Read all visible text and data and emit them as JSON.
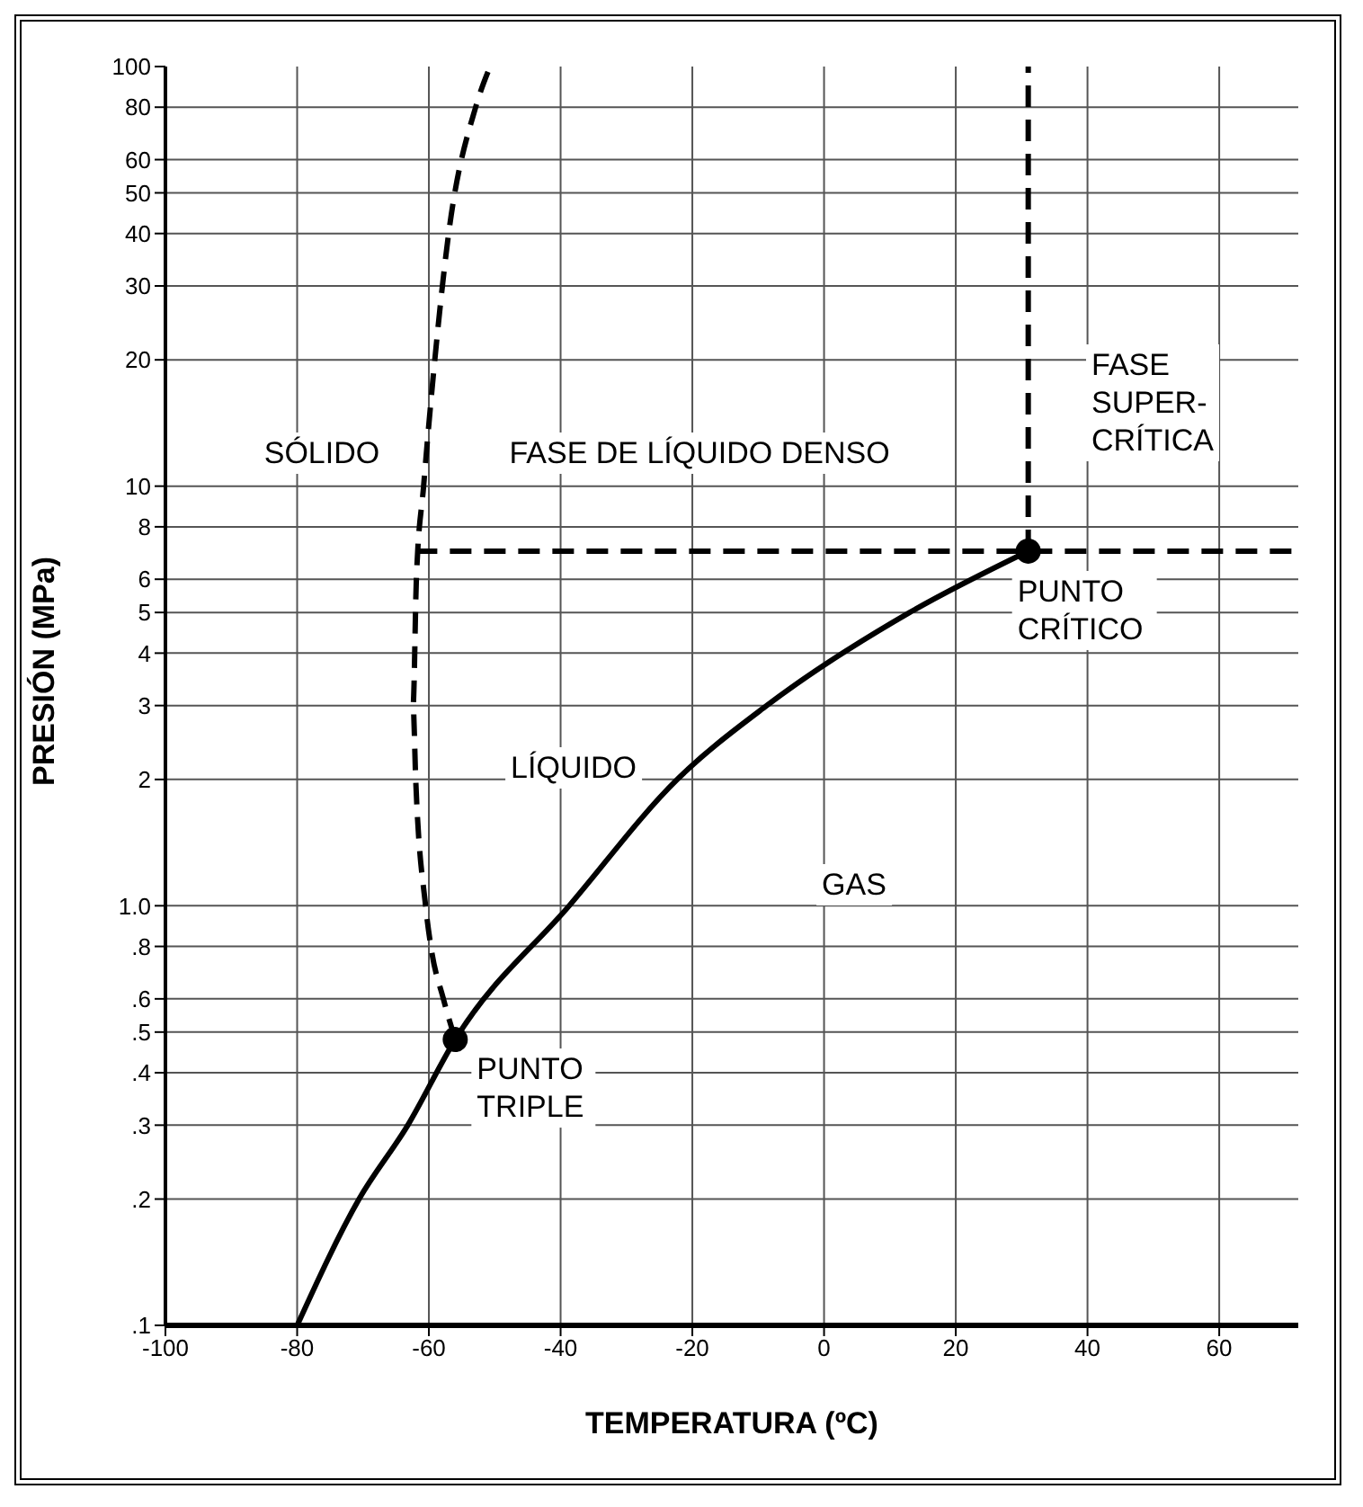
{
  "chart_data": {
    "type": "line",
    "xlabel": "TEMPERATURA (ºC)",
    "ylabel": "PRESIÓN (MPa)",
    "xlim": [
      -100,
      72
    ],
    "xticks": [
      -100,
      -80,
      -60,
      -40,
      -20,
      0,
      20,
      40,
      60
    ],
    "ylim": [
      0.1,
      100
    ],
    "log": "y",
    "yticks": [
      {
        "value": 0.1,
        "label": ".1"
      },
      {
        "value": 0.2,
        "label": ".2"
      },
      {
        "value": 0.3,
        "label": ".3"
      },
      {
        "value": 0.4,
        "label": ".4"
      },
      {
        "value": 0.5,
        "label": ".5"
      },
      {
        "value": 0.6,
        "label": ".6"
      },
      {
        "value": 0.8,
        "label": ".8"
      },
      {
        "value": 1,
        "label": "1.0"
      },
      2,
      3,
      4,
      5,
      6,
      8,
      10,
      20,
      30,
      40,
      50,
      60,
      80,
      100
    ],
    "grid": true,
    "marker": "none",
    "series": [
      {
        "color": "#000000",
        "line_style": "solid",
        "x": [
          -80,
          -70.6,
          -63.2,
          -56,
          -38.7,
          -22.3,
          -8.7,
          13,
          31
        ],
        "values": [
          0.1,
          0.2,
          0.3,
          0.48,
          1,
          2,
          3,
          5,
          7
        ]
      },
      {
        "color": "#000000",
        "line_style": "dashed",
        "x": [
          -56,
          -57.8,
          -59.7,
          -60.5,
          -62,
          -62.4,
          -61.9,
          -60.8,
          -59.1,
          -57,
          -52.9,
          -50.7
        ],
        "values": [
          0.48,
          0.6,
          0.8,
          1,
          2,
          3,
          6,
          10,
          20,
          40,
          80,
          100
        ]
      },
      {
        "type": "line",
        "color": "#000000",
        "line_style": "dashed",
        "x": [
          -62,
          72
        ],
        "values": [
          7,
          7
        ]
      },
      {
        "type": "line",
        "color": "#000000",
        "line_style": "dashed",
        "x": [
          31,
          31
        ],
        "values": [
          7,
          100
        ]
      },
      {
        "type": "scatter",
        "color": "#000000",
        "marker": "circle",
        "x": [
          -56,
          31
        ],
        "values": [
          0.48,
          7
        ]
      }
    ],
    "annotations": [
      "SÓLIDO",
      "FASE DE LÍQUIDO DENSO",
      "FASE\nSUPER-\nCRÍTICA",
      {
        "text": "PUNTO\nCRÍTICO",
        "x": 31,
        "y": 7
      },
      "LÍQUIDO",
      "GAS",
      {
        "text": "PUNTO\nTRIPLE",
        "x": -56,
        "y": 0.48
      }
    ]
  }
}
